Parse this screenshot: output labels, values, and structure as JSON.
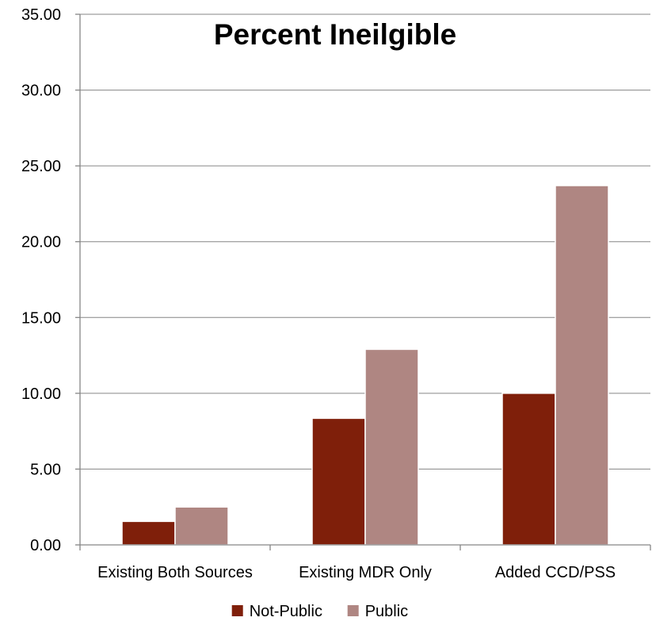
{
  "chart_data": {
    "type": "bar",
    "title": "Percent Ineilgible",
    "xlabel": "",
    "ylabel": "",
    "ylim": [
      0,
      35
    ],
    "ytick_step": 5,
    "ytick_labels": [
      "0.00",
      "5.00",
      "10.00",
      "15.00",
      "20.00",
      "25.00",
      "30.00",
      "35.00"
    ],
    "categories": [
      "Existing Both Sources",
      "Existing MDR Only",
      "Added CCD/PSS"
    ],
    "series": [
      {
        "name": "Not-Public",
        "color": "#7f1f0a",
        "values": [
          1.55,
          8.35,
          10.0
        ]
      },
      {
        "name": "Public",
        "color": "#af8682",
        "values": [
          2.5,
          12.9,
          23.7
        ]
      }
    ],
    "grid": true,
    "legend": "bottom"
  }
}
